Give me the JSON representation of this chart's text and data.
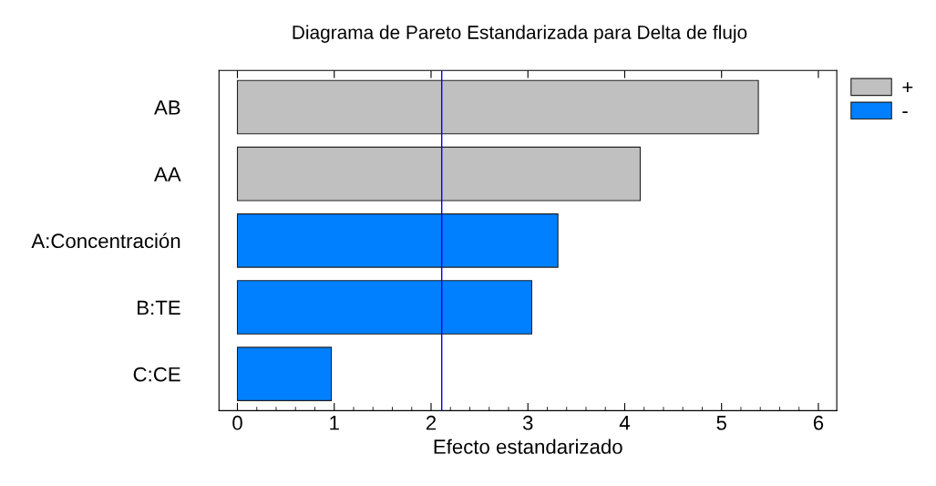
{
  "chart_data": {
    "type": "bar",
    "orientation": "horizontal",
    "title": "Diagrama de Pareto Estandarizada para Delta de flujo",
    "xlabel": "Efecto estandarizado",
    "categories": [
      "AB",
      "AA",
      "A:Concentración",
      "B:TE",
      "C:CE"
    ],
    "series": [
      {
        "name": "+",
        "color": "#c0c0c0",
        "values": [
          5.38,
          4.16,
          null,
          null,
          null
        ]
      },
      {
        "name": "-",
        "color": "#0080ff",
        "values": [
          null,
          null,
          3.31,
          3.04,
          0.97
        ]
      }
    ],
    "xlim": [
      -0.19,
      6.19
    ],
    "xticks": [
      0,
      1,
      2,
      3,
      4,
      5,
      6
    ],
    "ref_lines": [
      {
        "axis": "x",
        "value": 2.11,
        "color": "#0000ff"
      }
    ],
    "grid": false,
    "legend": "top right"
  }
}
